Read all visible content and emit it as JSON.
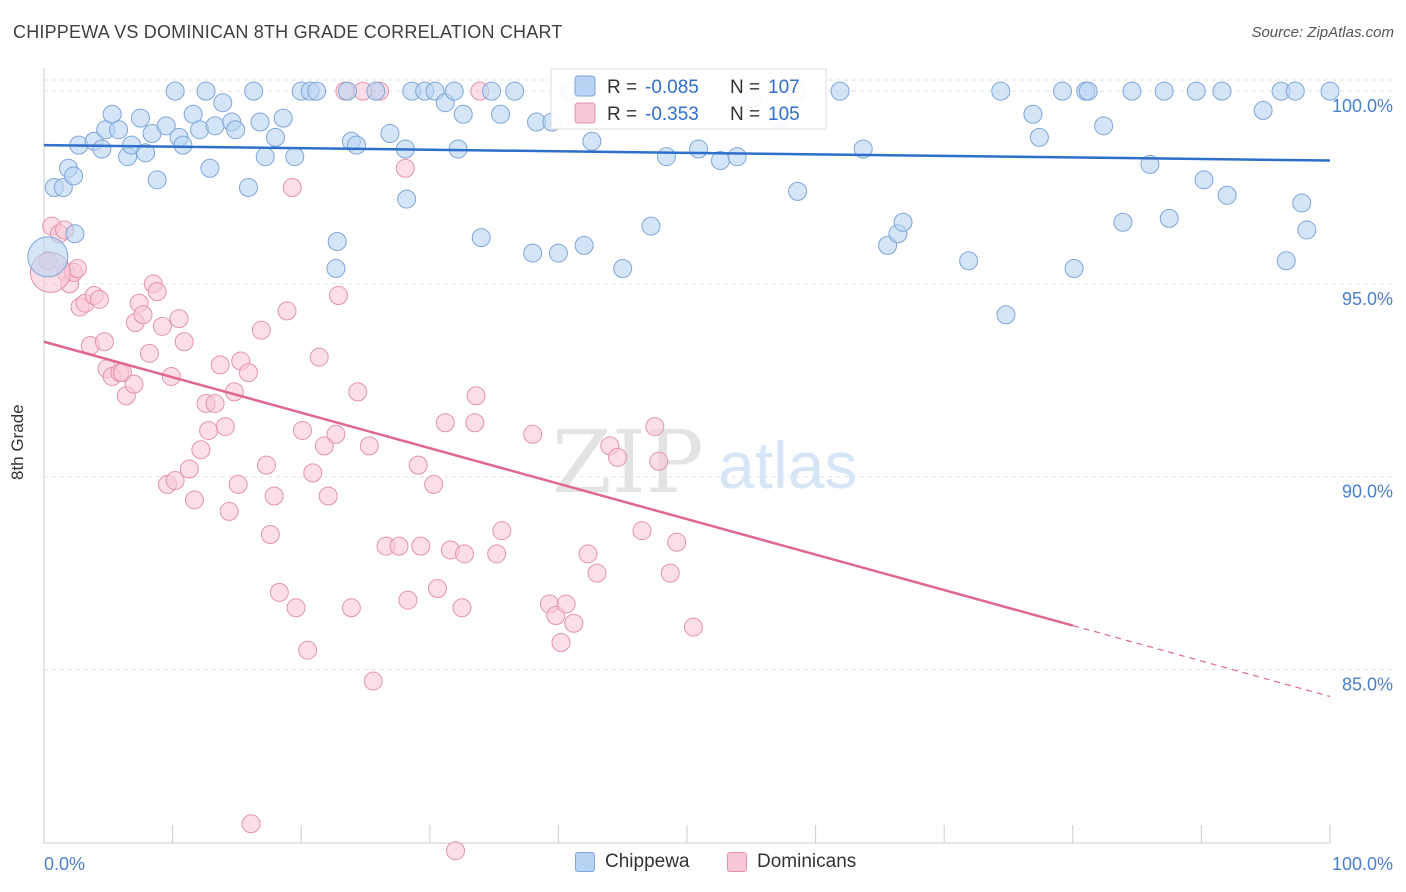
{
  "header": {
    "title": "CHIPPEWA VS DOMINICAN 8TH GRADE CORRELATION CHART",
    "source": "Source: ZipAtlas.com"
  },
  "watermark": {
    "zip": "ZIP",
    "atlas": "atlas"
  },
  "legend_top": {
    "rows": [
      {
        "r_label": "R =",
        "r_value": "-0.085",
        "n_label": "N =",
        "n_value": "107"
      },
      {
        "r_label": "R =",
        "r_value": "-0.353",
        "n_label": "N =",
        "n_value": "105"
      }
    ]
  },
  "legend_bottom": {
    "items": [
      "Chippewa",
      "Dominicans"
    ]
  },
  "colors": {
    "blue_fill": "#b8d3f3",
    "blue_stroke": "#7ea6d8",
    "blue_line": "#2f6fcc",
    "pink_fill": "#f9c8d6",
    "pink_stroke": "#e493ad",
    "pink_line": "#e06793",
    "tick_label": "#4a7fcf"
  },
  "chart_data": {
    "type": "scatter",
    "title": "CHIPPEWA VS DOMINICAN 8TH GRADE CORRELATION CHART",
    "xlabel": "",
    "ylabel": "8th Grade",
    "xlim": [
      0,
      100
    ],
    "ylim": [
      80.5,
      100.6
    ],
    "x_tick_labels": [
      "0.0%",
      "100.0%"
    ],
    "y_ticks": [
      85,
      90,
      95,
      100
    ],
    "y_tick_labels": [
      "85.0%",
      "90.0%",
      "95.0%",
      "100.0%"
    ],
    "grid": true,
    "legend_placement": "top-center",
    "series": [
      {
        "name": "Chippewa",
        "r": -0.085,
        "n": 107,
        "trend": {
          "x": [
            0,
            100
          ],
          "y": [
            98.6,
            98.2
          ],
          "dashed_from": null
        },
        "points": [
          [
            0.8,
            97.5
          ],
          [
            1.5,
            97.5
          ],
          [
            1.9,
            98.0
          ],
          [
            2.3,
            97.8
          ],
          [
            2.4,
            96.3
          ],
          [
            2.7,
            98.6
          ],
          [
            3.9,
            98.7
          ],
          [
            4.5,
            98.5
          ],
          [
            4.8,
            99.0
          ],
          [
            5.3,
            99.4
          ],
          [
            5.8,
            99.0
          ],
          [
            6.5,
            98.3
          ],
          [
            6.8,
            98.6
          ],
          [
            7.5,
            99.3
          ],
          [
            7.9,
            98.4
          ],
          [
            8.4,
            98.9
          ],
          [
            8.8,
            97.7
          ],
          [
            9.5,
            99.1
          ],
          [
            10.2,
            100.0
          ],
          [
            10.5,
            98.8
          ],
          [
            10.8,
            98.6
          ],
          [
            11.6,
            99.4
          ],
          [
            12.1,
            99.0
          ],
          [
            12.6,
            100.0
          ],
          [
            12.9,
            98.0
          ],
          [
            13.3,
            99.1
          ],
          [
            13.9,
            99.7
          ],
          [
            14.6,
            99.2
          ],
          [
            14.9,
            99.0
          ],
          [
            15.9,
            97.5
          ],
          [
            16.3,
            100.0
          ],
          [
            16.8,
            99.2
          ],
          [
            17.2,
            98.3
          ],
          [
            18.0,
            98.8
          ],
          [
            18.6,
            99.3
          ],
          [
            19.5,
            98.3
          ],
          [
            20.0,
            100.0
          ],
          [
            20.7,
            100.0
          ],
          [
            21.2,
            100.0
          ],
          [
            22.7,
            95.4
          ],
          [
            22.8,
            96.1
          ],
          [
            23.6,
            100.0
          ],
          [
            23.9,
            98.7
          ],
          [
            24.3,
            98.6
          ],
          [
            25.8,
            100.0
          ],
          [
            26.9,
            98.9
          ],
          [
            28.1,
            98.5
          ],
          [
            28.2,
            97.2
          ],
          [
            28.6,
            100.0
          ],
          [
            29.6,
            100.0
          ],
          [
            30.4,
            100.0
          ],
          [
            31.2,
            99.7
          ],
          [
            31.9,
            100.0
          ],
          [
            32.2,
            98.5
          ],
          [
            32.6,
            99.4
          ],
          [
            34.0,
            96.2
          ],
          [
            34.8,
            100.0
          ],
          [
            35.5,
            99.4
          ],
          [
            36.6,
            100.0
          ],
          [
            38.0,
            95.8
          ],
          [
            38.3,
            99.2
          ],
          [
            39.5,
            99.2
          ],
          [
            40.0,
            95.8
          ],
          [
            40.9,
            100.0
          ],
          [
            42.0,
            96.0
          ],
          [
            42.6,
            98.7
          ],
          [
            45.0,
            95.4
          ],
          [
            47.2,
            96.5
          ],
          [
            48.4,
            98.3
          ],
          [
            50.9,
            98.5
          ],
          [
            52.6,
            98.2
          ],
          [
            53.9,
            98.3
          ],
          [
            55.1,
            99.8
          ],
          [
            57.1,
            99.3
          ],
          [
            58.6,
            97.4
          ],
          [
            61.9,
            100.0
          ],
          [
            63.7,
            98.5
          ],
          [
            65.6,
            96.0
          ],
          [
            66.4,
            96.3
          ],
          [
            66.8,
            96.6
          ],
          [
            71.9,
            95.6
          ],
          [
            74.4,
            100.0
          ],
          [
            74.8,
            94.2
          ],
          [
            76.9,
            99.4
          ],
          [
            77.4,
            98.8
          ],
          [
            79.2,
            100.0
          ],
          [
            80.1,
            95.4
          ],
          [
            81.0,
            100.0
          ],
          [
            81.2,
            100.0
          ],
          [
            82.4,
            99.1
          ],
          [
            83.9,
            96.6
          ],
          [
            84.6,
            100.0
          ],
          [
            86.0,
            98.1
          ],
          [
            87.1,
            100.0
          ],
          [
            87.5,
            96.7
          ],
          [
            89.6,
            100.0
          ],
          [
            90.2,
            97.7
          ],
          [
            91.6,
            100.0
          ],
          [
            92.0,
            97.3
          ],
          [
            94.8,
            99.5
          ],
          [
            96.2,
            100.0
          ],
          [
            96.6,
            95.6
          ],
          [
            97.3,
            100.0
          ],
          [
            97.8,
            97.1
          ],
          [
            98.2,
            96.4
          ],
          [
            100.0,
            100.0
          ],
          [
            0.3,
            95.7
          ]
        ]
      },
      {
        "name": "Dominicans",
        "r": -0.353,
        "n": 105,
        "trend": {
          "x": [
            0,
            100
          ],
          "y": [
            93.5,
            84.3
          ],
          "dashed_from": 80
        },
        "points": [
          [
            0.3,
            95.6
          ],
          [
            0.6,
            96.5
          ],
          [
            1.2,
            96.3
          ],
          [
            1.6,
            96.4
          ],
          [
            1.7,
            95.3
          ],
          [
            2.0,
            95.0
          ],
          [
            2.3,
            95.3
          ],
          [
            2.6,
            95.4
          ],
          [
            2.8,
            94.4
          ],
          [
            3.2,
            94.5
          ],
          [
            3.6,
            93.4
          ],
          [
            3.9,
            94.7
          ],
          [
            4.3,
            94.6
          ],
          [
            4.7,
            93.5
          ],
          [
            4.9,
            92.8
          ],
          [
            5.3,
            92.6
          ],
          [
            5.9,
            92.7
          ],
          [
            6.1,
            92.7
          ],
          [
            6.4,
            92.1
          ],
          [
            7.0,
            92.4
          ],
          [
            7.1,
            94.0
          ],
          [
            7.4,
            94.5
          ],
          [
            7.7,
            94.2
          ],
          [
            8.2,
            93.2
          ],
          [
            8.5,
            95.0
          ],
          [
            8.8,
            94.8
          ],
          [
            9.2,
            93.9
          ],
          [
            9.6,
            89.8
          ],
          [
            9.9,
            92.6
          ],
          [
            10.2,
            89.9
          ],
          [
            10.5,
            94.1
          ],
          [
            10.9,
            93.5
          ],
          [
            11.3,
            90.2
          ],
          [
            11.7,
            89.4
          ],
          [
            12.2,
            90.7
          ],
          [
            12.6,
            91.9
          ],
          [
            12.8,
            91.2
          ],
          [
            13.3,
            91.9
          ],
          [
            13.7,
            92.9
          ],
          [
            14.1,
            91.3
          ],
          [
            14.4,
            89.1
          ],
          [
            14.8,
            92.2
          ],
          [
            15.1,
            89.8
          ],
          [
            15.3,
            93.0
          ],
          [
            15.9,
            92.7
          ],
          [
            16.1,
            81.0
          ],
          [
            16.9,
            93.8
          ],
          [
            17.3,
            90.3
          ],
          [
            17.6,
            88.5
          ],
          [
            17.9,
            89.5
          ],
          [
            18.3,
            87.0
          ],
          [
            18.9,
            94.3
          ],
          [
            19.3,
            97.5
          ],
          [
            19.6,
            86.6
          ],
          [
            20.1,
            91.2
          ],
          [
            20.5,
            85.5
          ],
          [
            20.9,
            90.1
          ],
          [
            21.4,
            93.1
          ],
          [
            21.8,
            90.8
          ],
          [
            22.1,
            89.5
          ],
          [
            22.7,
            91.1
          ],
          [
            22.9,
            94.7
          ],
          [
            23.4,
            100.0
          ],
          [
            23.9,
            86.6
          ],
          [
            24.4,
            92.2
          ],
          [
            25.3,
            90.8
          ],
          [
            25.6,
            84.7
          ],
          [
            26.1,
            100.0
          ],
          [
            26.6,
            88.2
          ],
          [
            27.6,
            88.2
          ],
          [
            28.1,
            98.0
          ],
          [
            28.3,
            86.8
          ],
          [
            29.1,
            90.3
          ],
          [
            29.3,
            88.2
          ],
          [
            30.3,
            89.8
          ],
          [
            30.6,
            87.1
          ],
          [
            31.2,
            91.4
          ],
          [
            31.6,
            88.1
          ],
          [
            32.0,
            80.3
          ],
          [
            32.5,
            86.6
          ],
          [
            32.7,
            88.0
          ],
          [
            33.5,
            91.4
          ],
          [
            33.6,
            92.1
          ],
          [
            33.9,
            100.0
          ],
          [
            35.2,
            88.0
          ],
          [
            35.6,
            88.6
          ],
          [
            38.0,
            91.1
          ],
          [
            39.3,
            86.7
          ],
          [
            39.8,
            86.4
          ],
          [
            40.2,
            85.7
          ],
          [
            40.6,
            86.7
          ],
          [
            41.2,
            86.2
          ],
          [
            42.3,
            88.0
          ],
          [
            43.0,
            87.5
          ],
          [
            44.0,
            90.8
          ],
          [
            44.6,
            90.5
          ],
          [
            46.5,
            88.6
          ],
          [
            47.5,
            91.3
          ],
          [
            47.8,
            90.4
          ],
          [
            48.7,
            87.5
          ],
          [
            49.2,
            88.3
          ],
          [
            50.5,
            86.1
          ],
          [
            58.5,
            100.0
          ],
          [
            24.8,
            100.0
          ],
          [
            0.5,
            95.3
          ]
        ]
      }
    ]
  }
}
